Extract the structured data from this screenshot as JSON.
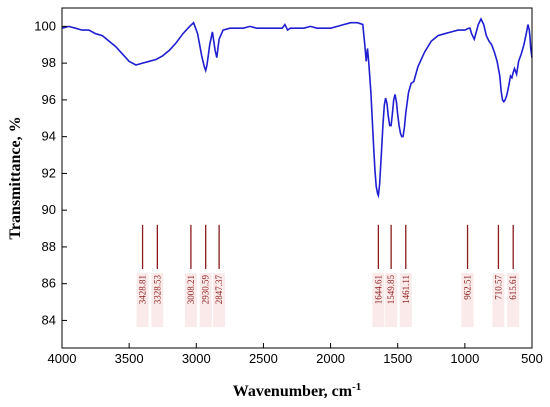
{
  "chart_data": {
    "type": "line",
    "xlabel": "Wavenumber, cm",
    "xlabel_sup": "-1",
    "ylabel": "Transmittance, %",
    "xlim": [
      4000,
      500
    ],
    "ylim": [
      82.5,
      101
    ],
    "xticks": [
      4000,
      3500,
      3000,
      2500,
      2000,
      1500,
      1000,
      500
    ],
    "yticks": [
      84,
      86,
      88,
      90,
      92,
      94,
      96,
      98,
      100
    ],
    "grid": false,
    "line_color": "#1f1fd1",
    "marker_color": "#8b1a1a",
    "series": [
      {
        "x": [
          4000,
          3950,
          3900,
          3850,
          3800,
          3750,
          3700,
          3650,
          3600,
          3550,
          3500,
          3450,
          3400,
          3350,
          3300,
          3250,
          3200,
          3150,
          3100,
          3050,
          3020,
          2990,
          2960,
          2940,
          2930,
          2920,
          2900,
          2880,
          2860,
          2847,
          2830,
          2800,
          2750,
          2700,
          2650,
          2600,
          2550,
          2500,
          2450,
          2400,
          2360,
          2340,
          2320,
          2300,
          2250,
          2200,
          2150,
          2100,
          2050,
          2000,
          1950,
          1900,
          1850,
          1800,
          1760,
          1745,
          1735,
          1725,
          1715,
          1700,
          1690,
          1680,
          1670,
          1660,
          1650,
          1644,
          1635,
          1620,
          1610,
          1600,
          1590,
          1580,
          1570,
          1560,
          1549,
          1540,
          1530,
          1520,
          1510,
          1500,
          1490,
          1480,
          1470,
          1461,
          1450,
          1440,
          1420,
          1400,
          1380,
          1350,
          1300,
          1250,
          1200,
          1150,
          1100,
          1050,
          1000,
          970,
          962,
          950,
          930,
          900,
          880,
          860,
          850,
          840,
          820,
          800,
          780,
          760,
          740,
          730,
          720,
          710,
          700,
          690,
          680,
          670,
          660,
          650,
          640,
          630,
          615,
          600,
          580,
          560,
          540,
          530,
          520,
          515,
          510,
          500
        ],
        "y": [
          99.9,
          100.0,
          99.9,
          99.8,
          99.8,
          99.6,
          99.5,
          99.2,
          98.9,
          98.5,
          98.1,
          97.9,
          98.0,
          98.1,
          98.2,
          98.4,
          98.7,
          99.1,
          99.6,
          100.0,
          100.2,
          99.6,
          98.4,
          97.8,
          97.6,
          97.9,
          99.0,
          99.7,
          98.7,
          98.3,
          99.3,
          99.8,
          99.9,
          99.9,
          99.9,
          100.0,
          99.9,
          99.9,
          99.9,
          99.9,
          99.9,
          100.1,
          99.8,
          99.9,
          99.9,
          99.9,
          100.0,
          99.9,
          99.9,
          99.9,
          100.0,
          100.1,
          100.2,
          100.2,
          100.1,
          99.0,
          98.1,
          98.8,
          98.0,
          96.4,
          95.0,
          93.6,
          92.2,
          91.3,
          90.9,
          90.8,
          91.4,
          93.3,
          94.6,
          95.7,
          96.1,
          95.8,
          95.1,
          94.6,
          94.6,
          95.2,
          96.0,
          96.3,
          95.9,
          95.2,
          94.6,
          94.2,
          94.0,
          94.0,
          94.5,
          95.3,
          96.4,
          96.9,
          97.0,
          97.8,
          98.6,
          99.2,
          99.5,
          99.6,
          99.7,
          99.8,
          99.8,
          99.9,
          99.9,
          99.6,
          99.3,
          100.1,
          100.4,
          100.1,
          99.8,
          99.5,
          99.2,
          99.0,
          98.6,
          98.1,
          97.3,
          96.5,
          96.0,
          95.9,
          96.0,
          96.2,
          96.5,
          96.9,
          97.3,
          97.2,
          97.5,
          97.7,
          97.4,
          98.1,
          98.5,
          99.0,
          99.7,
          100.1,
          99.8,
          99.4,
          98.8,
          98.3
        ]
      }
    ],
    "annotations": [
      "3428.81",
      "3328.53",
      "3008.21",
      "2930.59",
      "2847.37",
      "1644.61",
      "1549.85",
      "1461.11",
      "962.51",
      "710.57",
      "615.61"
    ],
    "marker_positions": [
      3400,
      3290,
      3040,
      2930,
      2830,
      1644,
      1549,
      1440,
      980,
      750,
      640
    ],
    "marker_range": [
      86.8,
      89.2
    ]
  }
}
